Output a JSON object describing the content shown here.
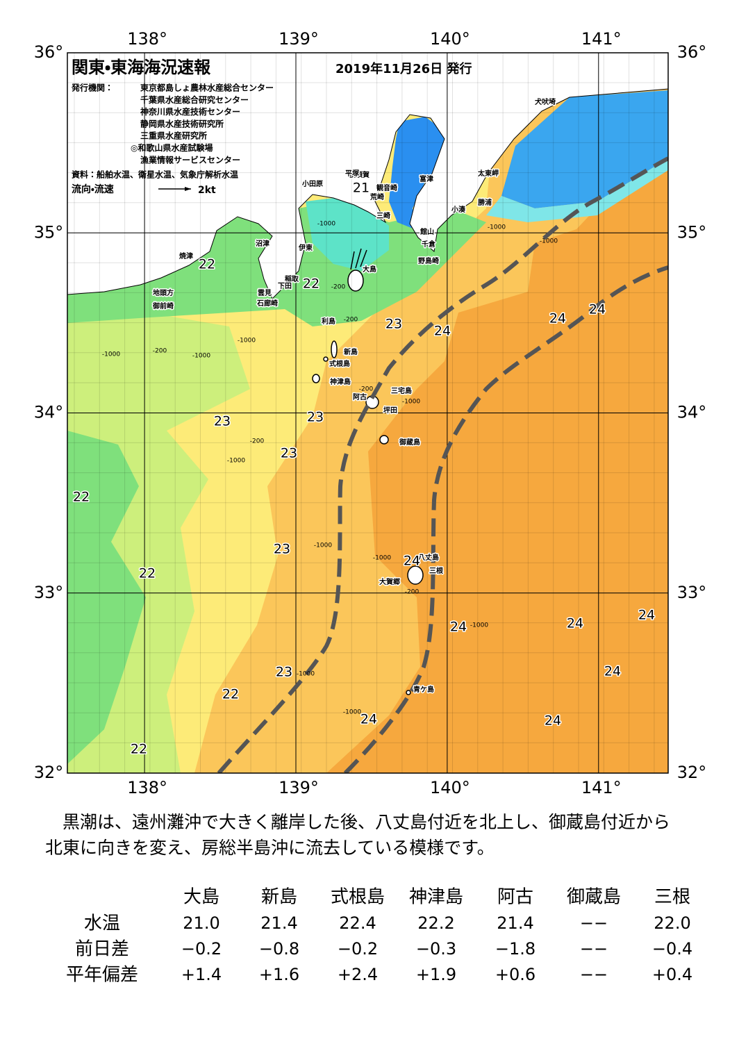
{
  "map": {
    "title": "関東・東海海況速報",
    "date": "2019年11月26日 発行",
    "issuer_label": "発行機関：",
    "issuers": [
      "東京都島しょ農林水産総合センター",
      "千葉県水産総合研究センター",
      "神奈川県水産技術センター",
      "静岡県水産技術研究所",
      "三重県水産研究所",
      "◎和歌山県水産試験場",
      "漁業情報サービスセンター"
    ],
    "source": "資料：船舶水温、衛星水温、気象庁解析水温",
    "flow_legend": "流向・流速",
    "flow_scale": "2kt",
    "lon_ticks": [
      {
        "value": 138,
        "label": "138°"
      },
      {
        "value": 139,
        "label": "139°"
      },
      {
        "value": 140,
        "label": "140°"
      },
      {
        "value": 141,
        "label": "141°"
      }
    ],
    "lat_ticks": [
      {
        "value": 36,
        "label": "36°"
      },
      {
        "value": 35,
        "label": "35°"
      },
      {
        "value": 34,
        "label": "34°"
      },
      {
        "value": 33,
        "label": "33°"
      },
      {
        "value": 32,
        "label": "32°"
      }
    ],
    "place_names": [
      "犬吠埼",
      "太東岬",
      "勝浦",
      "小湊",
      "館山",
      "千倉",
      "野島崎",
      "富津",
      "横須賀",
      "平塚",
      "観音崎",
      "荒崎",
      "三崎",
      "小田原",
      "沼津",
      "伊東",
      "大島",
      "稲取",
      "下田",
      "雲見",
      "石廊崎",
      "焼津",
      "地頭方",
      "御前崎",
      "利島",
      "新島",
      "式根島",
      "神津島",
      "阿古",
      "三宅島",
      "坪田",
      "御蔵島",
      "八丈島",
      "三根",
      "大賀郷",
      "青ケ島"
    ],
    "temperature_labels": [
      21,
      22,
      22,
      23,
      24,
      24,
      24,
      23,
      23,
      23,
      22,
      23,
      22,
      24,
      24,
      24,
      24,
      23,
      22,
      24,
      24,
      24,
      22
    ],
    "depth_labels": [
      "-1000",
      "-1000",
      "-1000",
      "-200",
      "-200",
      "-1000",
      "-200",
      "-1000",
      "-1000",
      "-200",
      "-1000",
      "-1000",
      "-200",
      "-1000",
      "-1000",
      "-200",
      "-1000",
      "-1000",
      "-1000"
    ]
  },
  "summary_lines": [
    "黒潮は、遠州灘沖で大きく離岸した後、八丈島付近を北上し、御蔵島付近から",
    "北東に向きを変え、房総半島沖に流去している模様です。"
  ],
  "table": {
    "columns": [
      "大島",
      "新島",
      "式根島",
      "神津島",
      "阿古",
      "御蔵島",
      "三根"
    ],
    "rows": [
      {
        "label": "水温",
        "values": [
          "21.0",
          "21.4",
          "22.4",
          "22.2",
          "21.4",
          "−−",
          "22.0"
        ]
      },
      {
        "label": "前日差",
        "values": [
          "−0.2",
          "−0.8",
          "−0.2",
          "−0.3",
          "−1.8",
          "−−",
          "−0.4"
        ]
      },
      {
        "label": "平年偏差",
        "values": [
          "+1.4",
          "+1.6",
          "+2.4",
          "+1.9",
          "+0.6",
          "−−",
          "+0.4"
        ]
      }
    ]
  }
}
